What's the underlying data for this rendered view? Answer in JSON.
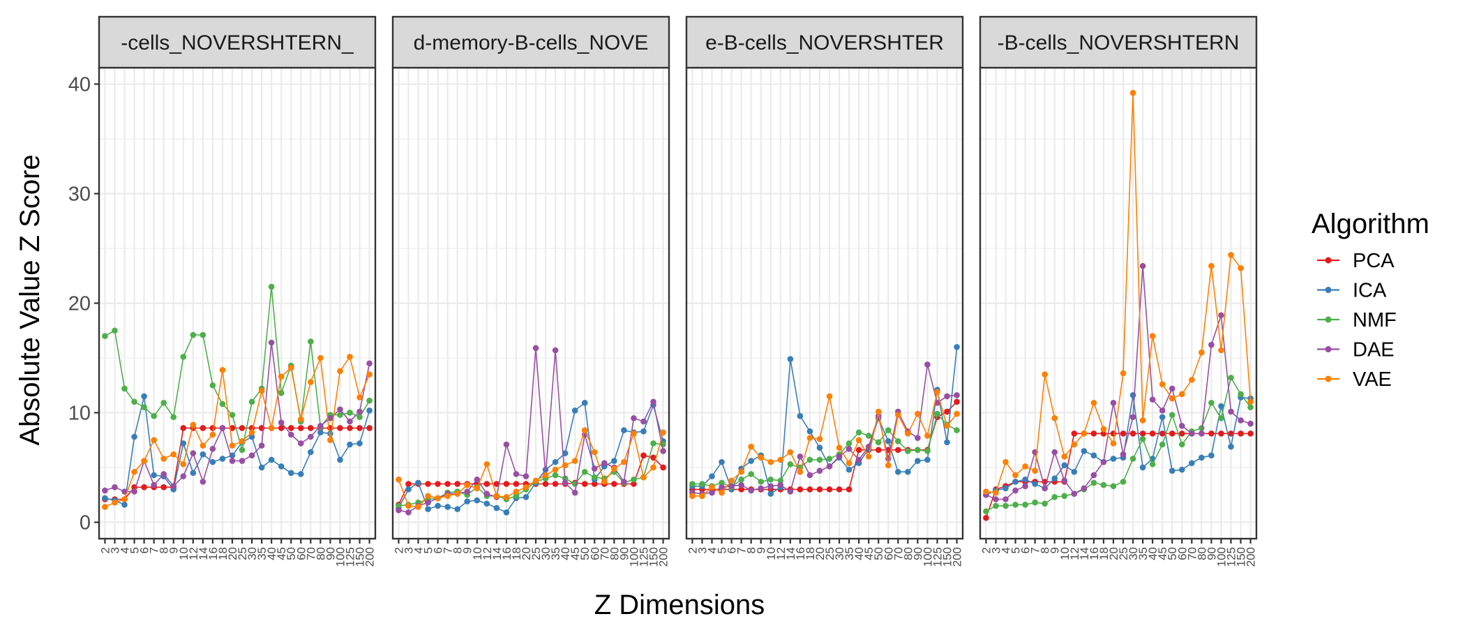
{
  "chart_data": {
    "type": "line",
    "title": "",
    "xlabel": "Z Dimensions",
    "ylabel": "Absolute Value Z Score",
    "ylim": [
      -1.5,
      41.5
    ],
    "yticks": [
      0,
      10,
      20,
      30,
      40
    ],
    "grid": true,
    "legend_title": "Algorithm",
    "legend_position": "right",
    "categories": [
      "2",
      "3",
      "4",
      "5",
      "6",
      "7",
      "8",
      "9",
      "10",
      "12",
      "14",
      "16",
      "18",
      "20",
      "25",
      "30",
      "35",
      "40",
      "45",
      "50",
      "60",
      "70",
      "80",
      "90",
      "100",
      "125",
      "150",
      "200"
    ],
    "series_styles": [
      {
        "name": "PCA",
        "color": "#E41A1C"
      },
      {
        "name": "ICA",
        "color": "#377EB8"
      },
      {
        "name": "NMF",
        "color": "#4DAF4A"
      },
      {
        "name": "DAE",
        "color": "#984EA3"
      },
      {
        "name": "VAE",
        "color": "#FF7F00"
      }
    ],
    "panels": [
      {
        "strip": "-cells_NOVERSHTERN_",
        "series": [
          {
            "name": "PCA",
            "values": [
              2.1,
              2.1,
              2.1,
              3.2,
              3.2,
              3.2,
              3.2,
              3.2,
              8.6,
              8.6,
              8.6,
              8.6,
              8.6,
              8.6,
              8.6,
              8.6,
              8.6,
              8.6,
              8.6,
              8.6,
              8.6,
              8.6,
              8.6,
              8.6,
              8.6,
              8.6,
              8.6,
              8.6
            ]
          },
          {
            "name": "ICA",
            "values": [
              2.2,
              2.0,
              1.6,
              7.8,
              11.5,
              4.3,
              4.2,
              3.0,
              7.2,
              4.5,
              6.2,
              5.5,
              5.8,
              6.1,
              7.3,
              7.8,
              5.0,
              5.7,
              5.1,
              4.5,
              4.4,
              6.4,
              8.2,
              8.1,
              5.7,
              7.1,
              7.2,
              10.2
            ]
          },
          {
            "name": "NMF",
            "values": [
              17.0,
              17.5,
              12.2,
              11.0,
              10.5,
              9.7,
              10.9,
              9.6,
              15.1,
              17.1,
              17.1,
              12.5,
              10.8,
              9.8,
              6.6,
              11.0,
              12.2,
              21.5,
              11.8,
              14.3,
              9.2,
              16.5,
              8.7,
              9.8,
              9.8,
              10.0,
              9.6,
              11.1
            ]
          },
          {
            "name": "DAE",
            "values": [
              2.9,
              3.2,
              2.8,
              2.8,
              5.6,
              3.4,
              4.4,
              3.3,
              4.2,
              6.3,
              3.7,
              6.7,
              8.6,
              5.6,
              5.6,
              6.1,
              7.0,
              16.4,
              9.1,
              8.0,
              7.2,
              7.8,
              8.8,
              9.5,
              10.3,
              9.2,
              10.1,
              14.5
            ]
          },
          {
            "name": "VAE",
            "values": [
              1.4,
              1.8,
              2.1,
              4.6,
              5.6,
              7.5,
              5.8,
              6.2,
              5.3,
              8.9,
              7.0,
              8.0,
              13.9,
              7.0,
              7.4,
              8.2,
              12.0,
              8.6,
              13.3,
              14.1,
              9.4,
              12.8,
              15.0,
              7.5,
              13.8,
              15.1,
              11.4,
              13.5
            ]
          }
        ]
      },
      {
        "strip": "d-memory-B-cells_NOVE",
        "series": [
          {
            "name": "PCA",
            "values": [
              1.6,
              3.5,
              3.5,
              3.5,
              3.5,
              3.5,
              3.5,
              3.5,
              3.5,
              3.5,
              3.5,
              3.5,
              3.5,
              3.5,
              3.5,
              3.5,
              3.5,
              3.5,
              3.6,
              3.5,
              3.5,
              3.5,
              3.5,
              3.5,
              3.5,
              6.1,
              5.9,
              5.0
            ]
          },
          {
            "name": "ICA",
            "values": [
              1.3,
              3.0,
              3.6,
              1.2,
              1.5,
              1.4,
              1.2,
              1.9,
              2.0,
              1.7,
              1.3,
              0.9,
              2.2,
              2.3,
              3.6,
              4.8,
              5.5,
              6.3,
              10.2,
              10.9,
              3.9,
              5.1,
              5.6,
              8.4,
              8.2,
              8.3,
              10.7,
              7.4
            ]
          },
          {
            "name": "NMF",
            "values": [
              1.5,
              1.6,
              1.8,
              2.1,
              2.2,
              2.7,
              2.8,
              2.5,
              3.2,
              2.4,
              2.4,
              2.1,
              2.4,
              3.0,
              3.7,
              4.0,
              4.3,
              4.0,
              3.5,
              4.6,
              4.1,
              4.0,
              4.6,
              3.6,
              3.9,
              4.1,
              7.2,
              7.1
            ]
          },
          {
            "name": "DAE",
            "values": [
              1.1,
              0.9,
              1.5,
              1.8,
              2.2,
              2.6,
              2.6,
              2.8,
              3.9,
              2.6,
              2.3,
              7.1,
              4.4,
              4.2,
              15.9,
              4.3,
              15.7,
              3.6,
              2.7,
              8.0,
              4.9,
              5.4,
              5.0,
              3.7,
              9.5,
              9.2,
              11.0,
              6.5
            ]
          },
          {
            "name": "VAE",
            "values": [
              3.9,
              1.5,
              1.4,
              2.4,
              2.2,
              2.4,
              2.6,
              3.4,
              3.1,
              5.3,
              2.4,
              2.3,
              2.8,
              3.2,
              3.8,
              4.3,
              4.8,
              5.2,
              5.6,
              8.4,
              6.4,
              3.7,
              4.9,
              5.5,
              8.1,
              4.1,
              5.0,
              8.2
            ]
          }
        ]
      },
      {
        "strip": "e-B-cells_NOVERSHTER",
        "series": [
          {
            "name": "PCA",
            "values": [
              3.0,
              3.0,
              3.0,
              3.0,
              3.0,
              3.0,
              3.0,
              3.0,
              3.0,
              3.0,
              3.0,
              3.0,
              3.0,
              3.0,
              3.0,
              3.0,
              3.0,
              6.6,
              6.6,
              6.6,
              6.6,
              6.6,
              6.6,
              6.6,
              6.6,
              9.6,
              10.1,
              11.0
            ]
          },
          {
            "name": "ICA",
            "values": [
              3.3,
              3.3,
              4.2,
              5.5,
              3.0,
              4.9,
              5.6,
              6.1,
              2.6,
              3.2,
              14.9,
              9.7,
              8.3,
              6.8,
              5.1,
              5.9,
              4.8,
              5.4,
              6.7,
              9.5,
              7.4,
              4.6,
              4.6,
              5.6,
              5.7,
              12.1,
              7.3,
              16.0
            ]
          },
          {
            "name": "NMF",
            "values": [
              3.5,
              3.5,
              3.3,
              3.6,
              3.2,
              3.9,
              4.4,
              3.7,
              3.9,
              3.8,
              5.3,
              5.0,
              5.7,
              5.7,
              5.8,
              6.2,
              7.2,
              8.2,
              7.9,
              7.3,
              8.4,
              7.4,
              6.5,
              6.6,
              6.5,
              9.9,
              8.9,
              8.4
            ]
          },
          {
            "name": "DAE",
            "values": [
              2.7,
              2.6,
              2.7,
              3.2,
              3.3,
              3.4,
              2.9,
              3.1,
              3.3,
              3.4,
              2.8,
              6.0,
              4.3,
              4.7,
              5.1,
              6.0,
              6.7,
              5.7,
              6.9,
              9.7,
              5.8,
              10.1,
              8.3,
              7.7,
              14.4,
              10.9,
              11.5,
              11.6
            ]
          },
          {
            "name": "VAE",
            "values": [
              2.4,
              2.4,
              3.2,
              2.7,
              3.8,
              4.6,
              6.9,
              5.9,
              5.5,
              5.7,
              6.4,
              4.6,
              7.7,
              7.6,
              11.5,
              6.8,
              5.4,
              7.5,
              6.0,
              10.1,
              5.2,
              9.8,
              8.1,
              9.9,
              7.9,
              11.9,
              8.8,
              9.9
            ]
          }
        ]
      },
      {
        "strip": "-B-cells_NOVERSHTERN",
        "series": [
          {
            "name": "PCA",
            "values": [
              0.4,
              3.0,
              3.3,
              3.7,
              3.7,
              3.7,
              3.7,
              3.7,
              3.7,
              8.1,
              8.1,
              8.1,
              8.1,
              8.1,
              8.1,
              8.1,
              8.1,
              8.1,
              8.1,
              8.1,
              8.1,
              8.1,
              8.1,
              8.1,
              8.1,
              8.1,
              8.1,
              8.1
            ]
          },
          {
            "name": "ICA",
            "values": [
              2.5,
              2.9,
              3.1,
              3.7,
              3.9,
              3.5,
              3.1,
              4.0,
              5.2,
              4.6,
              6.5,
              6.1,
              5.5,
              5.8,
              5.9,
              11.6,
              5.0,
              5.8,
              9.6,
              4.7,
              4.8,
              5.4,
              5.9,
              6.1,
              10.6,
              6.9,
              11.4,
              11.3
            ]
          },
          {
            "name": "NMF",
            "values": [
              1.0,
              1.5,
              1.5,
              1.6,
              1.6,
              1.8,
              1.7,
              2.3,
              2.4,
              2.6,
              3.0,
              3.6,
              3.4,
              3.3,
              3.7,
              5.8,
              7.6,
              5.3,
              7.1,
              9.8,
              7.1,
              8.3,
              8.6,
              10.9,
              9.5,
              13.2,
              11.7,
              10.5
            ]
          },
          {
            "name": "DAE",
            "values": [
              2.5,
              2.1,
              2.1,
              2.9,
              3.3,
              6.4,
              3.1,
              6.4,
              3.8,
              2.6,
              3.1,
              4.3,
              5.5,
              10.9,
              6.2,
              9.6,
              23.4,
              11.2,
              10.2,
              12.2,
              8.8,
              8.1,
              8.1,
              16.2,
              18.9,
              10.1,
              9.3,
              9.0
            ]
          },
          {
            "name": "VAE",
            "values": [
              2.8,
              2.7,
              5.5,
              4.3,
              5.1,
              4.7,
              13.5,
              9.5,
              6.0,
              7.1,
              8.1,
              10.9,
              8.5,
              7.2,
              13.6,
              39.2,
              9.3,
              17.0,
              12.6,
              11.3,
              11.7,
              13.0,
              15.5,
              23.4,
              15.7,
              24.4,
              23.2,
              11.0
            ]
          }
        ]
      }
    ]
  }
}
